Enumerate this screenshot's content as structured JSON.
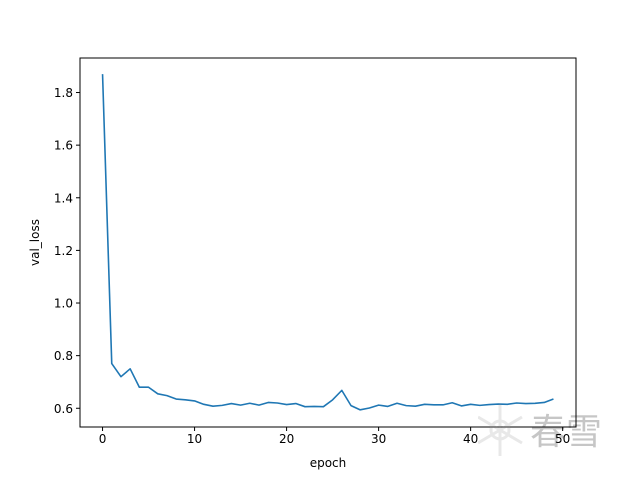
{
  "chart_data": {
    "type": "line",
    "title": "",
    "xlabel": "epoch",
    "ylabel": "val_loss",
    "xlim": [
      -2.45,
      51.45
    ],
    "ylim": [
      0.5288,
      1.9312
    ],
    "xticks": [
      0,
      10,
      20,
      30,
      40,
      50
    ],
    "xtick_labels": [
      "0",
      "10",
      "20",
      "30",
      "40",
      "50"
    ],
    "yticks": [
      0.6,
      0.8,
      1.0,
      1.2,
      1.4,
      1.6,
      1.8
    ],
    "ytick_labels": [
      "0.6",
      "0.8",
      "1.0",
      "1.2",
      "1.4",
      "1.6",
      "1.8"
    ],
    "grid": false,
    "legend": "none",
    "series": [
      {
        "color": "#1f77b4",
        "x": [
          0,
          1,
          2,
          3,
          4,
          5,
          6,
          7,
          8,
          9,
          10,
          11,
          12,
          13,
          14,
          15,
          16,
          17,
          18,
          19,
          20,
          21,
          22,
          23,
          24,
          25,
          26,
          27,
          28,
          29,
          30,
          31,
          32,
          33,
          34,
          35,
          36,
          37,
          38,
          39,
          40,
          41,
          42,
          43,
          44,
          45,
          46,
          47,
          48,
          49
        ],
        "values": [
          1.87,
          0.77,
          0.72,
          0.75,
          0.68,
          0.68,
          0.655,
          0.648,
          0.635,
          0.632,
          0.628,
          0.615,
          0.608,
          0.611,
          0.618,
          0.612,
          0.619,
          0.612,
          0.622,
          0.62,
          0.614,
          0.618,
          0.606,
          0.607,
          0.606,
          0.632,
          0.668,
          0.61,
          0.594,
          0.601,
          0.612,
          0.607,
          0.619,
          0.61,
          0.608,
          0.615,
          0.613,
          0.613,
          0.621,
          0.609,
          0.615,
          0.611,
          0.614,
          0.616,
          0.615,
          0.62,
          0.618,
          0.619,
          0.622,
          0.635
        ]
      }
    ]
  },
  "watermark": {
    "text": "春雪"
  }
}
